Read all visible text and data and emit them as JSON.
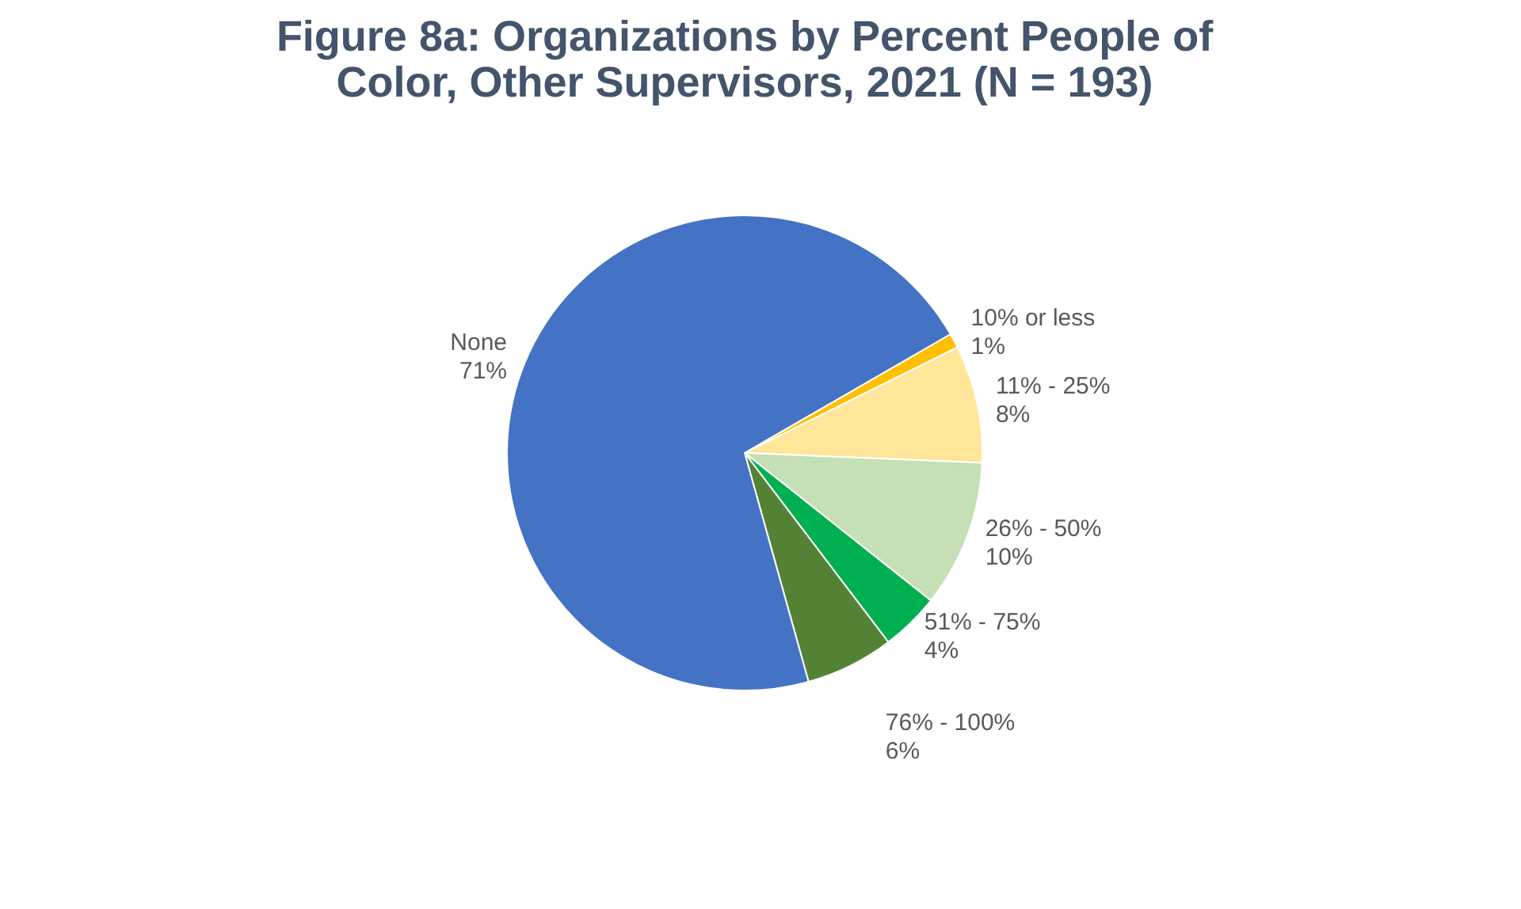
{
  "chart_data": {
    "type": "pie",
    "title": "Figure 8a:  Organizations by Percent People of Color, Other Supervisors, 2021 (N = 193)",
    "categories": [
      "10% or less",
      "11% - 25%",
      "26% - 50%",
      "51% - 75%",
      "76% - 100%",
      "None"
    ],
    "values": [
      1,
      8,
      10,
      4,
      6,
      71
    ],
    "value_labels": [
      "1%",
      "8%",
      "10%",
      "4%",
      "6%",
      "71%"
    ],
    "colors": [
      "#ffc000",
      "#ffe699",
      "#c5e0b4",
      "#00b050",
      "#548235",
      "#4472c4"
    ],
    "legend": false
  }
}
